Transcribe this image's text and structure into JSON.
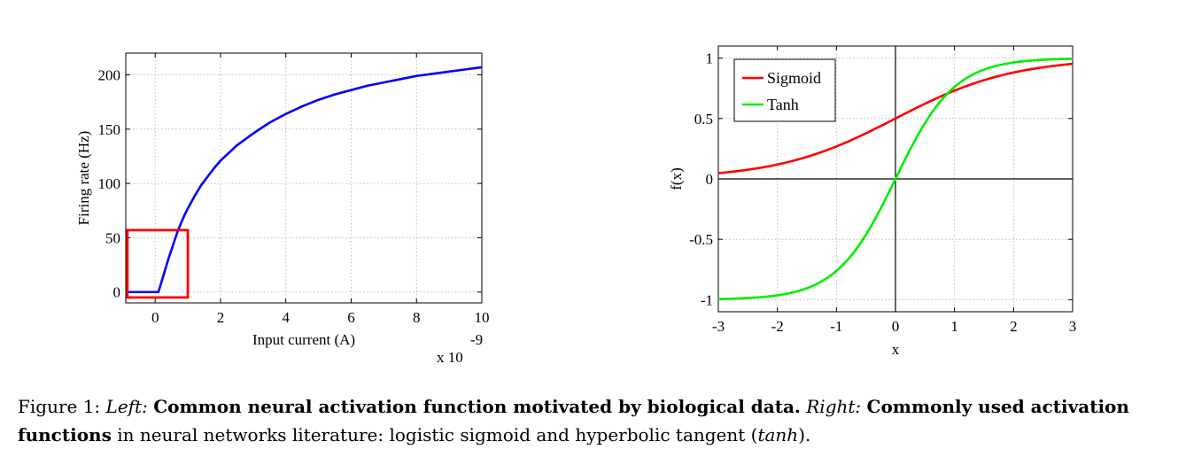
{
  "chart_data": [
    {
      "type": "line",
      "title": "",
      "xlabel": "Input current (A)",
      "ylabel": "Firing rate (Hz)",
      "x_multiplier": "x 10",
      "x_exponent": "-9",
      "xlim": [
        -0.9,
        10
      ],
      "ylim": [
        -10,
        220
      ],
      "xticks": [
        0,
        2,
        4,
        6,
        8,
        10
      ],
      "yticks": [
        0,
        50,
        100,
        150,
        200
      ],
      "grid": true,
      "series": [
        {
          "color": "#0000ff",
          "x": [
            -0.9,
            0.1,
            0.2,
            0.3,
            0.4,
            0.5,
            0.6,
            0.7,
            0.8,
            0.9,
            1.0,
            1.2,
            1.4,
            1.6,
            1.8,
            2.0,
            2.5,
            3.0,
            3.5,
            4.0,
            4.5,
            5.0,
            5.5,
            6.0,
            6.5,
            7.0,
            7.5,
            8.0,
            8.5,
            9.0,
            9.5,
            10.0
          ],
          "y": [
            0,
            0,
            10,
            20,
            30,
            39,
            48,
            57,
            64,
            71,
            77,
            88,
            98,
            106,
            114,
            121,
            135,
            146,
            156,
            164,
            171,
            177,
            182,
            186,
            190,
            193,
            196,
            199,
            201,
            203,
            205,
            207
          ]
        }
      ],
      "annotations": [
        {
          "type": "rectangle",
          "color": "#ff0000",
          "x": [
            -0.85,
            1.0
          ],
          "y": [
            -5,
            57
          ]
        }
      ]
    },
    {
      "type": "line",
      "title": "",
      "xlabel": "x",
      "ylabel": "f(x)",
      "xlim": [
        -3,
        3
      ],
      "ylim": [
        -1.1,
        1.1
      ],
      "xticks": [
        -3,
        -2,
        -1,
        0,
        1,
        2,
        3
      ],
      "yticks": [
        -1,
        -0.5,
        0,
        0.5,
        1
      ],
      "grid": true,
      "legend_position": "top-left",
      "series": [
        {
          "name": "Sigmoid",
          "color": "#ff0000",
          "function": "logistic sigmoid"
        },
        {
          "name": "Tanh",
          "color": "#00ee00",
          "function": "tanh"
        }
      ]
    }
  ],
  "caption": {
    "prefix": "Figure 1: ",
    "left_label": "Left:",
    "left_text": "Common neural activation function motivated by biological data.",
    "right_label": "Right:",
    "right_text_bold": "Commonly used activation functions",
    "right_text_rest": " in neural networks literature: logistic sigmoid and hyperbolic tangent (",
    "tanh": "tanh",
    "end": ")."
  }
}
